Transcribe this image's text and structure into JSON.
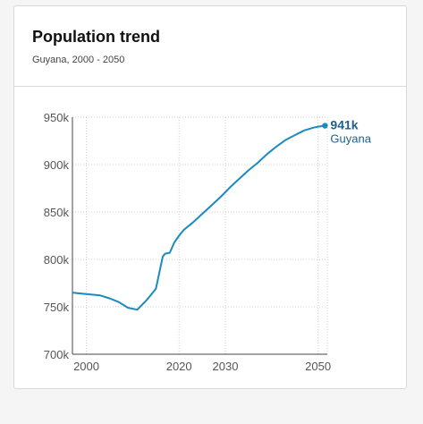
{
  "card": {
    "title": "Population trend",
    "subtitle": "Guyana, 2000 - 2050"
  },
  "chart_data": {
    "type": "line",
    "xlim": [
      1997,
      2052
    ],
    "ylim": [
      700,
      950
    ],
    "x_ticks": [
      2000,
      2020,
      2030,
      2050
    ],
    "x_tick_labels": [
      "2000",
      "2020",
      "2030",
      "2050"
    ],
    "y_ticks": [
      700,
      750,
      800,
      850,
      900,
      950
    ],
    "y_tick_labels": [
      "700k",
      "750k",
      "800k",
      "850k",
      "900k",
      "950k"
    ],
    "grid": true,
    "series": [
      {
        "name": "Guyana",
        "color": "#1a8ac0",
        "end_label": "941k",
        "x": [
          1997,
          1999,
          2001,
          2003,
          2005,
          2007,
          2008,
          2009,
          2011,
          2013,
          2015,
          2016,
          2016.5,
          2017,
          2018,
          2019,
          2020,
          2021,
          2023,
          2025,
          2027,
          2029,
          2031,
          2033,
          2035,
          2037,
          2039,
          2041,
          2043,
          2045,
          2047,
          2049,
          2050,
          2051.5
        ],
        "values": [
          765,
          764,
          763,
          762,
          759,
          755,
          752,
          749,
          747,
          757,
          769,
          792,
          803,
          806,
          807,
          818,
          825,
          831,
          839,
          848,
          857,
          866,
          876,
          885,
          894,
          902,
          911,
          919,
          926,
          931,
          936,
          939,
          940,
          941
        ]
      }
    ]
  }
}
